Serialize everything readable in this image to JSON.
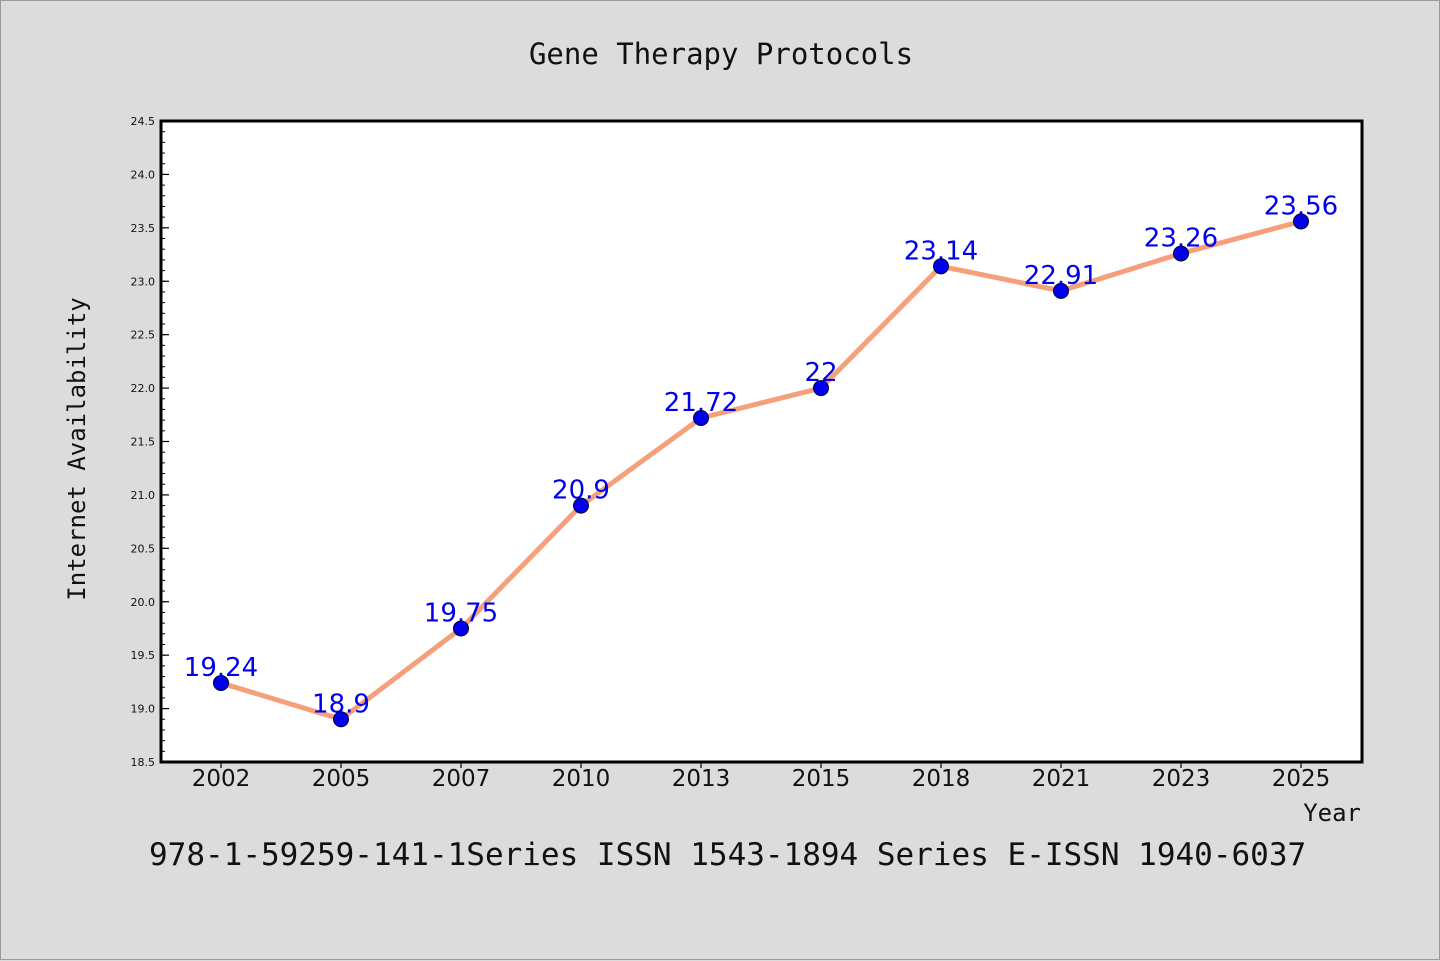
{
  "chart_data": {
    "type": "line",
    "title": "Gene Therapy Protocols",
    "xlabel": "Year",
    "ylabel": "Internet Availability",
    "categories": [
      "2002",
      "2005",
      "2007",
      "2010",
      "2013",
      "2015",
      "2018",
      "2021",
      "2023",
      "2025"
    ],
    "values": [
      19.24,
      18.9,
      19.75,
      20.9,
      21.72,
      22,
      23.14,
      22.91,
      23.26,
      23.56
    ],
    "data_labels": [
      "19.24",
      "18.9",
      "19.75",
      "20.9",
      "21.72",
      "22",
      "23.14",
      "22.91",
      "23.26",
      "23.56"
    ],
    "ylim": [
      18.5,
      24.5
    ],
    "yticks": [
      "18.5",
      "19.0",
      "19.5",
      "20.0",
      "20.5",
      "21.0",
      "21.5",
      "22.0",
      "22.5",
      "23.0",
      "23.5",
      "24.0",
      "24.5"
    ],
    "grid": false,
    "legend": "none",
    "line_color": "#f5a07a",
    "marker_color": "#0000ee",
    "label_color": "#0000ee"
  },
  "footer": {
    "text": "978-1-59259-141-1Series ISSN 1543-1894 Series E-ISSN 1940-6037"
  }
}
